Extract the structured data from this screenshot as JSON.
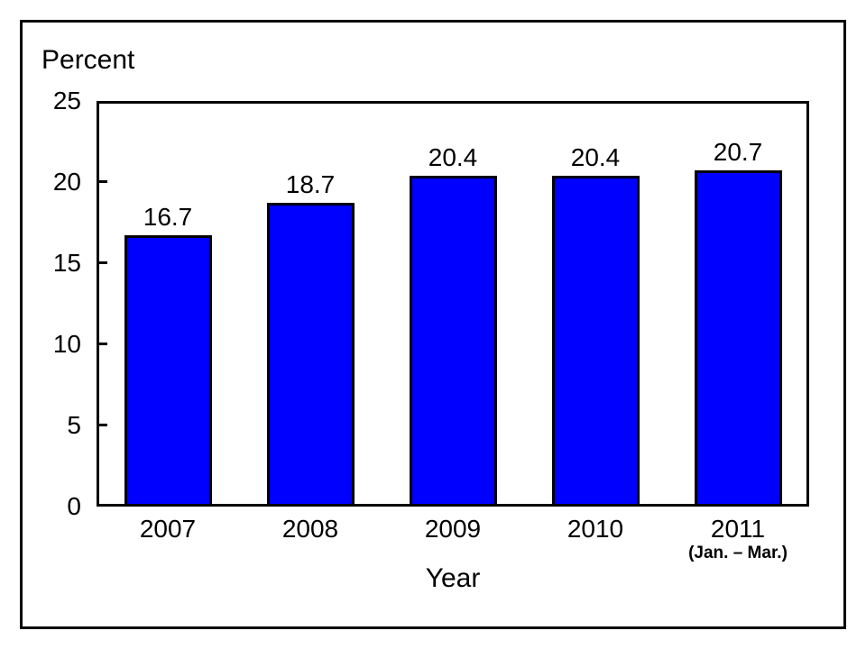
{
  "chart_data": {
    "type": "bar",
    "title": "",
    "ylabel": "Percent",
    "xlabel": "Year",
    "categories": [
      "2007",
      "2008",
      "2009",
      "2010",
      "2011"
    ],
    "category_sublabels": [
      "",
      "",
      "",
      "",
      "(Jan. – Mar.)"
    ],
    "values": [
      16.7,
      18.7,
      20.4,
      20.4,
      20.7
    ],
    "ylim": [
      0,
      25
    ],
    "yticks": [
      0,
      5,
      10,
      15,
      20,
      25
    ],
    "grid": false,
    "legend_position": "none",
    "bar_fill_color": "#0000FE",
    "bar_border_color": "#000000",
    "axis_color": "#000000",
    "text_color": "#000000",
    "background_color": "#FFFFFF"
  }
}
